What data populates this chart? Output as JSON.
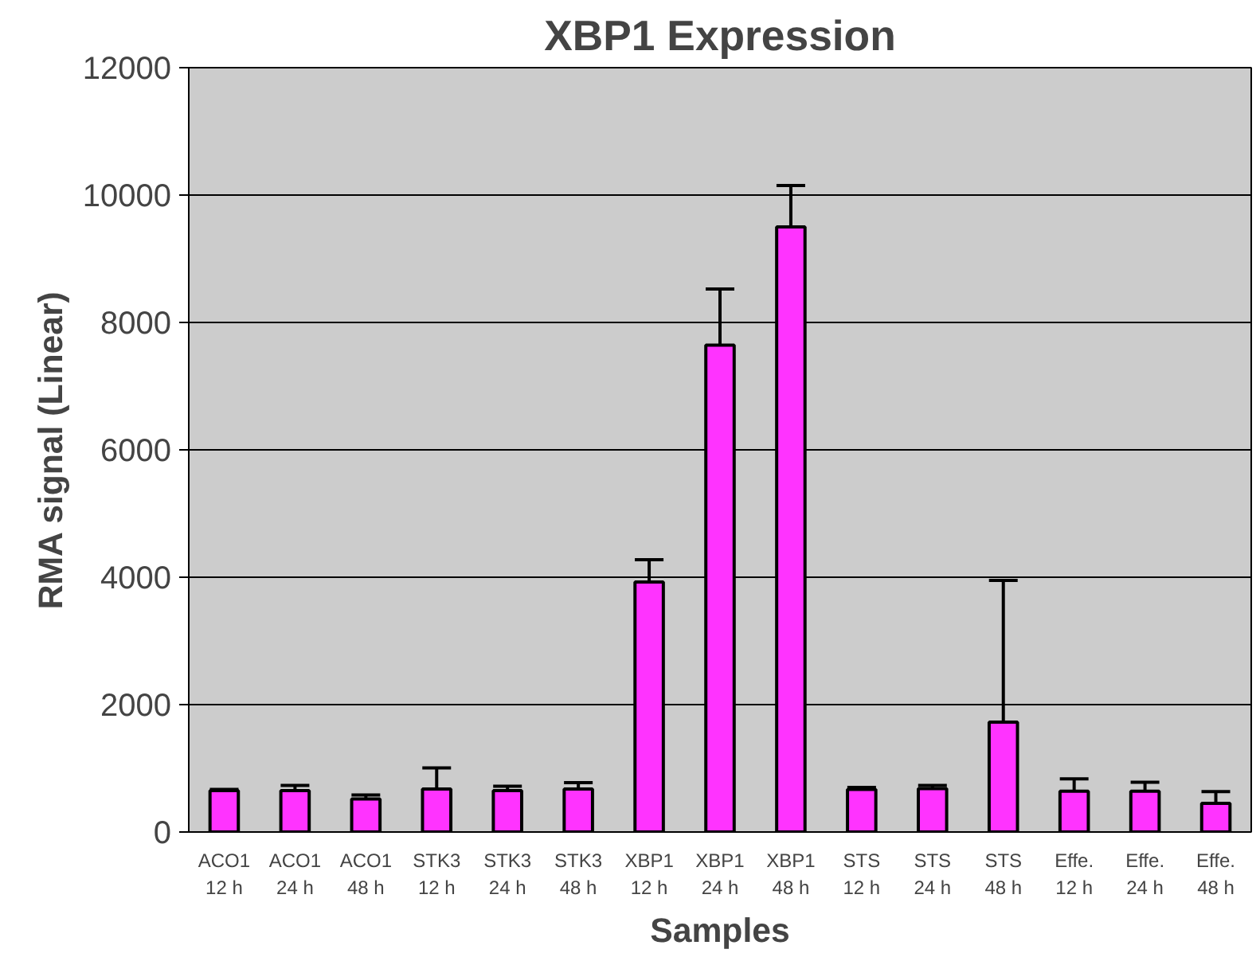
{
  "chart_data": {
    "type": "bar",
    "title": "XBP1 Expression",
    "xlabel": "Samples",
    "ylabel": "RMA signal (Linear)",
    "categories": [
      "ACO1\n12 h",
      "ACO1\n24 h",
      "ACO1\n48 h",
      "STK3\n12 h",
      "STK3\n24 h",
      "STK3\n48 h",
      "XBP1\n12 h",
      "XBP1\n24 h",
      "XBP1\n48 h",
      "STS\n12 h",
      "STS\n24 h",
      "STS\n48 h",
      "Effe.\n12 h",
      "Effe.\n24 h",
      "Effe.\n48 h"
    ],
    "values": [
      650,
      650,
      520,
      675,
      650,
      675,
      3925,
      7645,
      9500,
      670,
      680,
      1725,
      640,
      640,
      450
    ],
    "errors": [
      20,
      80,
      60,
      330,
      70,
      100,
      350,
      880,
      650,
      30,
      50,
      2225,
      195,
      140,
      185
    ],
    "color": "#ff33ff",
    "ylim": [
      0,
      12000
    ],
    "yticks": [
      0,
      2000,
      4000,
      6000,
      8000,
      10000,
      12000
    ],
    "grid": "y"
  }
}
